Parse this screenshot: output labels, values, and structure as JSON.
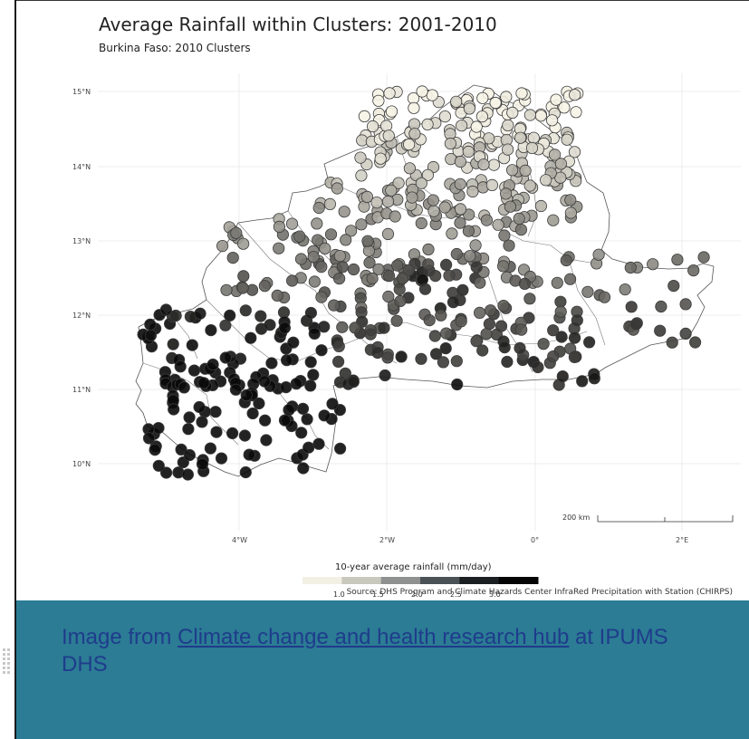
{
  "map": {
    "title": "Average Rainfall within Clusters: 2001-2010",
    "subtitle": "Burkina Faso: 2010 Clusters",
    "lat_labels": [
      "15°N",
      "14°N",
      "13°N",
      "12°N",
      "11°N",
      "10°N"
    ],
    "lon_labels": [
      "4°W",
      "2°W",
      "0°",
      "2°E"
    ],
    "scale_bar_label": "200 km",
    "legend": {
      "title": "10-year average rainfall (mm/day)",
      "ticks": [
        "1.0",
        "1.5",
        "2.0",
        "2.5",
        "3.0"
      ],
      "colors": [
        "#f2f0e4",
        "#c9c8bd",
        "#8e918f",
        "#4b5256",
        "#1b1f22",
        "#050505"
      ]
    },
    "source": "Source: DHS Program and Climate Hazards Center InfraRed Precipitation with Station (CHIRPS)",
    "gradient_low": "#f6f3e6",
    "gradient_high": "#0a0a0a"
  },
  "caption": {
    "prefix": "Image from ",
    "link_text": "Climate change and health research hub",
    "suffix": " at IPUMS DHS"
  },
  "colors": {
    "caption_bg": "#2b7c94",
    "caption_text": "#1f3c8c"
  }
}
